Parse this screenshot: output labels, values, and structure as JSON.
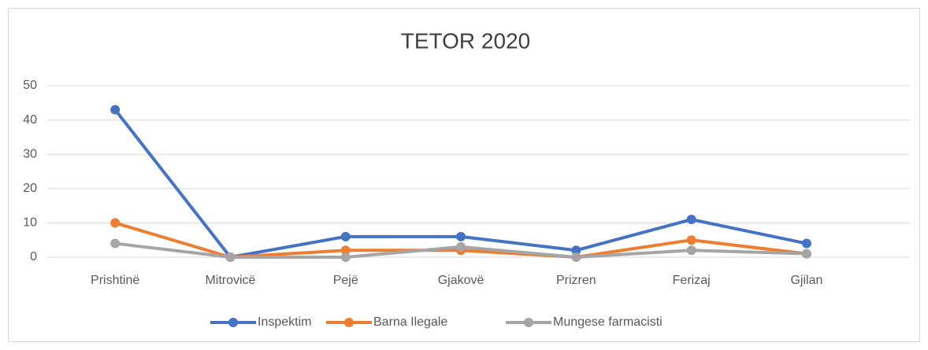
{
  "chart_data": {
    "type": "line",
    "title": "TETOR 2020",
    "categories": [
      "Prishtinë",
      "Mitrovicë",
      "Pejë",
      "Gjakovë",
      "Prizren",
      "Ferizaj",
      "Gjilan"
    ],
    "series": [
      {
        "name": "Inspektim",
        "color": "#4472c4",
        "values": [
          43,
          0,
          6,
          6,
          2,
          11,
          4
        ]
      },
      {
        "name": "Barna Ilegale",
        "color": "#ed7d31",
        "values": [
          10,
          0,
          2,
          2,
          0,
          5,
          1
        ]
      },
      {
        "name": "Mungese farmacisti",
        "color": "#a5a5a5",
        "values": [
          4,
          0,
          0,
          3,
          0,
          2,
          1
        ]
      }
    ],
    "ylim": [
      0,
      50
    ],
    "yticks": [
      0,
      10,
      20,
      30,
      40,
      50
    ],
    "grid": true,
    "legend": "bottom"
  }
}
